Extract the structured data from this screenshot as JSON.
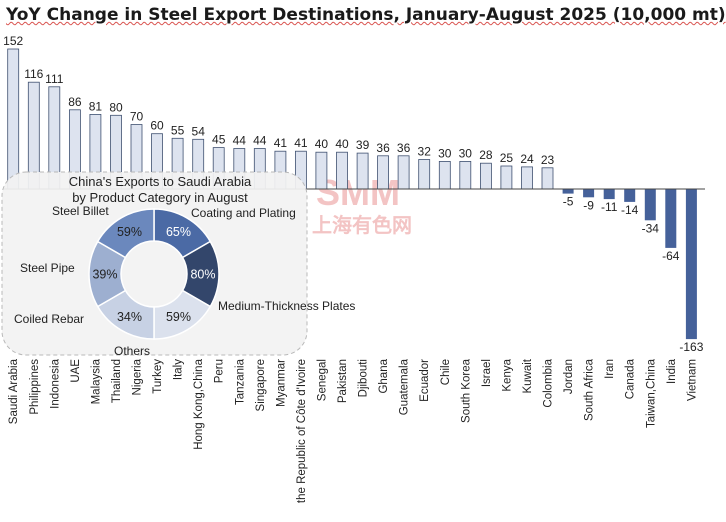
{
  "title": "YoY Change in Steel Export Destinations, January-August 2025 (10,000 mt)",
  "watermark": {
    "logo": "SMM",
    "text": "上海有色网"
  },
  "colors": {
    "positive_fill": "#dde3ef",
    "positive_stroke": "#3f5070",
    "negative_fill": "#45619a",
    "axis": "#444444",
    "inset_bg": "#f2f2f2",
    "inset_border": "#b8b8b8"
  },
  "chart_data": [
    {
      "type": "bar",
      "title": "YoY Change in Steel Export Destinations, January-August 2025 (10,000 mt)",
      "categories": [
        "Saudi Arabia",
        "Philippines",
        "Indonesia",
        "UAE",
        "Malaysia",
        "Thailand",
        "Nigeria",
        "Turkey",
        "Italy",
        "Hong Kong,China",
        "Peru",
        "Tanzania",
        "Singapore",
        "Myanmar",
        "the Republic of Côte d'Ivoire",
        "Senegal",
        "Pakistan",
        "Djibouti",
        "Ghana",
        "Guatemala",
        "Ecuador",
        "Chile",
        "South Korea",
        "Israel",
        "Kenya",
        "Kuwait",
        "Colombia",
        "Jordan",
        "South Africa",
        "Iran",
        "Canada",
        "Taiwan,China",
        "India",
        "Vietnam"
      ],
      "values": [
        152,
        116,
        111,
        86,
        81,
        80,
        70,
        60,
        55,
        54,
        45,
        44,
        44,
        41,
        41,
        40,
        40,
        39,
        36,
        36,
        32,
        30,
        30,
        28,
        25,
        24,
        23,
        -5,
        -9,
        -11,
        -14,
        -34,
        -64,
        -163
      ],
      "xlabel": "",
      "ylabel": "",
      "ylim": [
        -175,
        152
      ],
      "data_labels": true,
      "grid": false,
      "legend": "none"
    },
    {
      "type": "pie",
      "title": "China's Exports to Saudi Arabia by Product Category in August",
      "title_lines": [
        "China's Exports to Saudi Arabia",
        "by Product Category in August"
      ],
      "donut": true,
      "slices": [
        {
          "name": "Coating and Plating",
          "label": "65%",
          "value": 1,
          "color": "#4b6aa5"
        },
        {
          "name": "Medium-Thickness Plates",
          "label": "80%",
          "value": 1,
          "color": "#33466b"
        },
        {
          "name": "Others",
          "label": "59%",
          "value": 1,
          "color": "#dbe1ed"
        },
        {
          "name": "Coiled Rebar",
          "label": "34%",
          "value": 1,
          "color": "#c7d1e4"
        },
        {
          "name": "Steel Pipe",
          "label": "39%",
          "value": 1,
          "color": "#9dafd0"
        },
        {
          "name": "Steel Billet",
          "label": "59%",
          "value": 1,
          "color": "#6b88bd"
        }
      ]
    }
  ]
}
